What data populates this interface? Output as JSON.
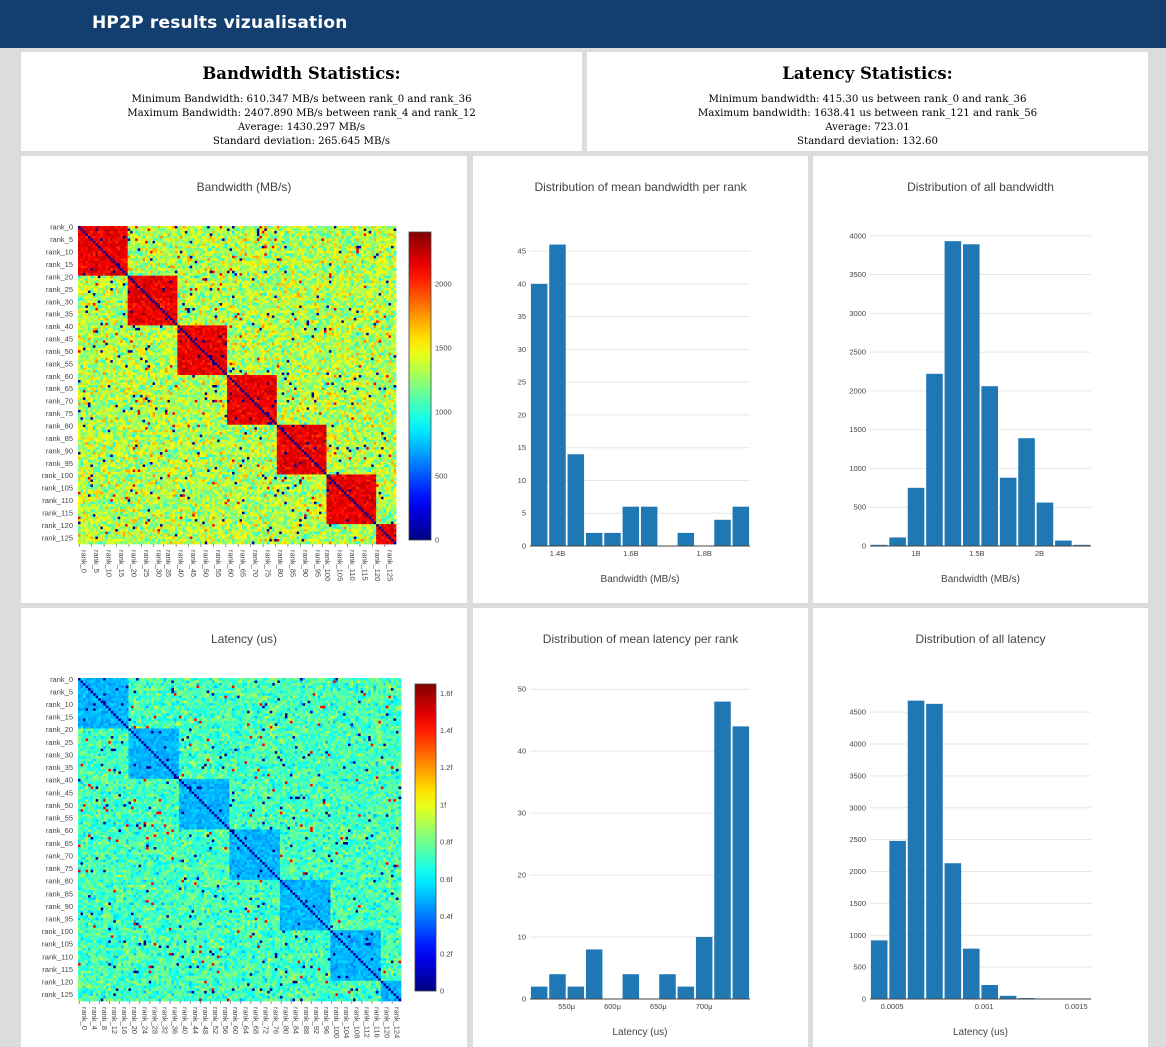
{
  "header": {
    "title": "HP2P results vizualisation"
  },
  "bandwidth_stats": {
    "title": "Bandwidth Statistics:",
    "lines": [
      "Minimum Bandwidth: 610.347 MB/s between rank_0 and rank_36",
      "Maximum Bandwidth: 2407.890 MB/s between rank_4 and rank_12",
      "Average: 1430.297 MB/s",
      "Standard deviation: 265.645 MB/s"
    ]
  },
  "latency_stats": {
    "title": "Latency Statistics:",
    "lines": [
      "Minimum bandwidth: 415.30 us between rank_0 and rank_36",
      "Maximum bandwidth: 1638.41 us between rank_121 and rank_56",
      "Average: 723.01",
      "Standard deviation: 132.60"
    ]
  },
  "chart_data": [
    {
      "id": "bw_heatmap",
      "type": "heatmap",
      "title": "Bandwidth (MB/s)",
      "size": 128,
      "block": 20,
      "y_ticks": [
        "rank_0",
        "rank_5",
        "rank_10",
        "rank_15",
        "rank_20",
        "rank_25",
        "rank_30",
        "rank_35",
        "rank_40",
        "rank_45",
        "rank_50",
        "rank_55",
        "rank_60",
        "rank_65",
        "rank_70",
        "rank_75",
        "rank_80",
        "rank_85",
        "rank_90",
        "rank_95",
        "rank_100",
        "rank_105",
        "rank_110",
        "rank_115",
        "rank_120",
        "rank_125"
      ],
      "x_ticks": [
        "rank_0",
        "rank_5",
        "rank_10",
        "rank_15",
        "rank_20",
        "rank_25",
        "rank_30",
        "rank_35",
        "rank_40",
        "rank_45",
        "rank_50",
        "rank_55",
        "rank_60",
        "rank_65",
        "rank_70",
        "rank_75",
        "rank_80",
        "rank_85",
        "rank_90",
        "rank_95",
        "rank_100",
        "rank_105",
        "rank_110",
        "rank_115",
        "rank_120",
        "rank_125"
      ],
      "colorscale": "jet",
      "zmin": 0,
      "zmax": 2408,
      "colorbar_ticks": [
        "0",
        "500",
        "1000",
        "1500",
        "2000"
      ],
      "colorbar_values": [
        0,
        500,
        1000,
        1500,
        2000
      ],
      "diag_value": 50,
      "block_value": 2150,
      "off_value": 1330,
      "noise": 260
    },
    {
      "id": "bw_mean_hist",
      "type": "bar",
      "title": "Distribution of mean bandwidth per rank",
      "xlabel": "Bandwidth (MB/s)",
      "values": [
        40,
        46,
        14,
        2,
        2,
        6,
        6,
        0,
        2,
        0,
        4,
        6
      ],
      "ylim": [
        0,
        47
      ],
      "y_ticks": [
        0,
        5,
        10,
        15,
        20,
        25,
        30,
        35,
        40,
        45
      ],
      "x_ticks": [
        "1.4B",
        "1.6B",
        "1.8B"
      ],
      "x_tick_positions": [
        1.5,
        5.5,
        9.5
      ]
    },
    {
      "id": "bw_all_hist",
      "type": "bar",
      "title": "Distribution of all bandwidth",
      "xlabel": "Bandwidth (MB/s)",
      "values": [
        15,
        110,
        750,
        2220,
        3930,
        3890,
        2060,
        880,
        1390,
        560,
        70,
        15
      ],
      "ylim": [
        0,
        4100
      ],
      "y_ticks": [
        0,
        500,
        1000,
        1500,
        2000,
        2500,
        3000,
        3500,
        4000
      ],
      "x_ticks": [
        "1B",
        "1.5B",
        "2B"
      ],
      "x_tick_positions": [
        2.5,
        5.8,
        9.2
      ]
    },
    {
      "id": "lat_heatmap",
      "type": "heatmap",
      "title": "Latency (us)",
      "size": 128,
      "block": 20,
      "y_ticks": [
        "rank_0",
        "rank_5",
        "rank_10",
        "rank_15",
        "rank_20",
        "rank_25",
        "rank_30",
        "rank_35",
        "rank_40",
        "rank_45",
        "rank_50",
        "rank_55",
        "rank_60",
        "rank_65",
        "rank_70",
        "rank_75",
        "rank_80",
        "rank_85",
        "rank_90",
        "rank_95",
        "rank_100",
        "rank_105",
        "rank_110",
        "rank_115",
        "rank_120",
        "rank_125"
      ],
      "x_ticks": [
        "rank_0",
        "rank_4",
        "rank_8",
        "rank_12",
        "rank_16",
        "rank_20",
        "rank_24",
        "rank_28",
        "rank_32",
        "rank_36",
        "rank_40",
        "rank_44",
        "rank_48",
        "rank_52",
        "rank_56",
        "rank_60",
        "rank_64",
        "rank_68",
        "rank_72",
        "rank_76",
        "rank_80",
        "rank_84",
        "rank_88",
        "rank_92",
        "rank_96",
        "rank_100",
        "rank_104",
        "rank_108",
        "rank_112",
        "rank_116",
        "rank_120",
        "rank_124"
      ],
      "colorscale": "jet",
      "zmin": 0,
      "zmax": 1.65,
      "colorbar_ticks": [
        "0",
        "0.2f",
        "0.4f",
        "0.6f",
        "0.8f",
        "1f",
        "1.2f",
        "1.4f",
        "1.6f"
      ],
      "colorbar_values": [
        0,
        0.2,
        0.4,
        0.6,
        0.8,
        1.0,
        1.2,
        1.4,
        1.6
      ],
      "diag_value": 0.05,
      "block_value": 0.5,
      "off_value": 0.73,
      "noise": 0.13
    },
    {
      "id": "lat_mean_hist",
      "type": "bar",
      "title": "Distribution of mean latency per rank",
      "xlabel": "Latency (us)",
      "values": [
        2,
        4,
        2,
        8,
        0,
        4,
        0,
        4,
        2,
        10,
        48,
        44
      ],
      "ylim": [
        0,
        51
      ],
      "y_ticks": [
        0,
        10,
        20,
        30,
        40,
        50
      ],
      "x_ticks": [
        "550μ",
        "600μ",
        "650μ",
        "700μ"
      ],
      "x_tick_positions": [
        2.0,
        4.5,
        7.0,
        9.5
      ]
    },
    {
      "id": "lat_all_hist",
      "type": "bar",
      "title": "Distribution of all latency",
      "xlabel": "Latency (us)",
      "values": [
        920,
        2480,
        4680,
        4630,
        2130,
        790,
        220,
        50,
        15,
        5,
        2,
        1
      ],
      "ylim": [
        0,
        4800
      ],
      "y_ticks": [
        0,
        500,
        1000,
        1500,
        2000,
        2500,
        3000,
        3500,
        4000,
        4500
      ],
      "x_ticks": [
        "0.0005",
        "0.001",
        "0.0015"
      ],
      "x_tick_positions": [
        1.2,
        6.2,
        11.2
      ]
    }
  ]
}
